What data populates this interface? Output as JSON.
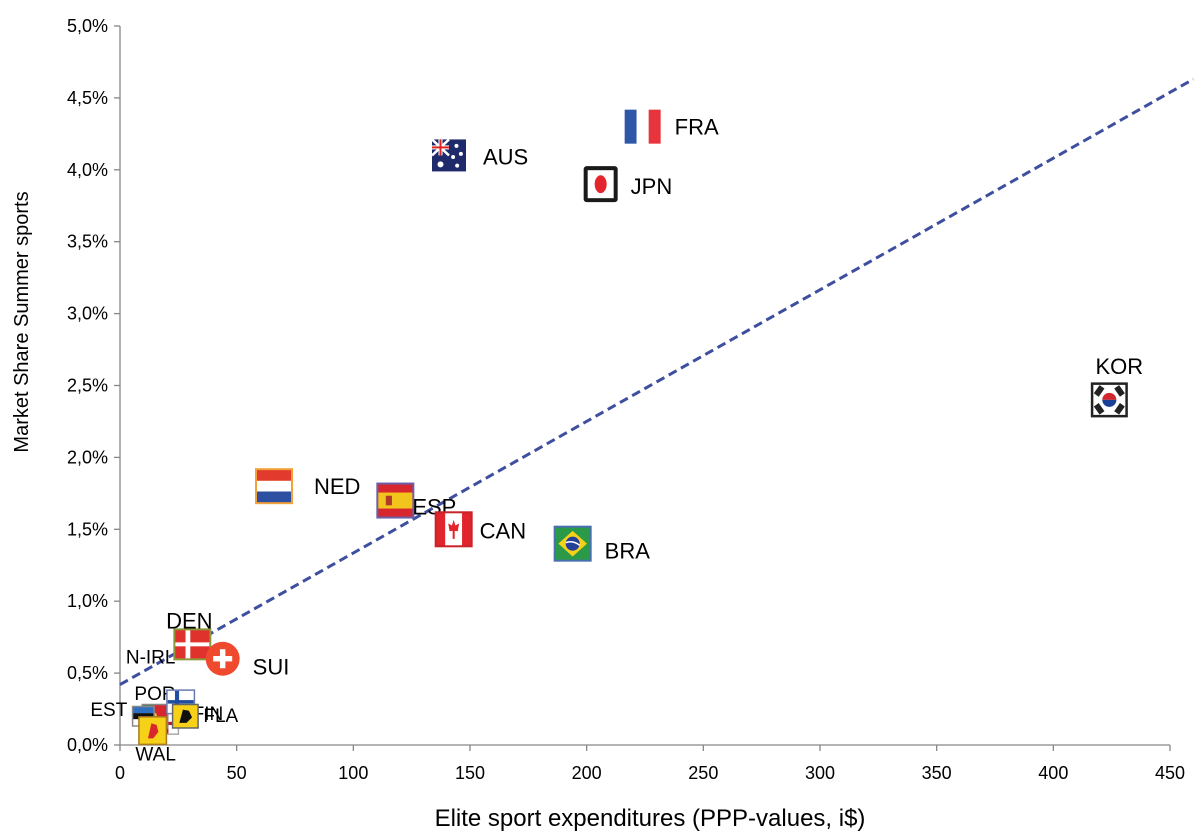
{
  "chart_data": {
    "type": "scatter",
    "title": "",
    "xlabel": "Elite sport expenditures (PPP-values, i$)",
    "ylabel": "Market Share Summer sports",
    "xlim": [
      0,
      450
    ],
    "ylim": [
      0,
      5
    ],
    "x_ticks": [
      "0",
      "50",
      "100",
      "150",
      "200",
      "250",
      "300",
      "350",
      "400",
      "450"
    ],
    "y_ticks": [
      "0,0%",
      "0,5%",
      "1,0%",
      "1,5%",
      "2,0%",
      "2,5%",
      "3,0%",
      "3,5%",
      "4,0%",
      "4,5%",
      "5,0%"
    ],
    "grid": false,
    "legend": "none",
    "trendline": {
      "style": "dashed",
      "color": "#3f4f9f",
      "x": [
        0,
        460
      ],
      "y": [
        0.42,
        4.63
      ]
    },
    "points": [
      {
        "label": "FRA",
        "x": 224,
        "y": 4.3,
        "flag": "france-flag"
      },
      {
        "label": "AUS",
        "x": 141,
        "y": 4.1,
        "flag": "australia-flag"
      },
      {
        "label": "JPN",
        "x": 206,
        "y": 3.9,
        "flag": "japan-flag"
      },
      {
        "label": "KOR",
        "x": 424,
        "y": 2.4,
        "flag": "korea-flag"
      },
      {
        "label": "NED",
        "x": 66,
        "y": 1.8,
        "flag": "netherlands-flag"
      },
      {
        "label": "ESP",
        "x": 118,
        "y": 1.7,
        "flag": "spain-flag"
      },
      {
        "label": "CAN",
        "x": 143,
        "y": 1.5,
        "flag": "canada-flag"
      },
      {
        "label": "BRA",
        "x": 194,
        "y": 1.4,
        "flag": "brazil-flag"
      },
      {
        "label": "DEN",
        "x": 31,
        "y": 0.7,
        "flag": "denmark-flag"
      },
      {
        "label": "SUI",
        "x": 44,
        "y": 0.6,
        "flag": "switzerland-flag"
      },
      {
        "label": "N-IRL",
        "x": 20,
        "y": 0.15,
        "flag": "northern-ireland-flag"
      },
      {
        "label": "POR",
        "x": 15,
        "y": 0.2,
        "flag": "portugal-flag"
      },
      {
        "label": "FIN",
        "x": 26,
        "y": 0.3,
        "flag": "finland-flag"
      },
      {
        "label": "EST",
        "x": 10,
        "y": 0.2,
        "flag": "estonia-flag"
      },
      {
        "label": "FLA",
        "x": 28,
        "y": 0.2,
        "flag": "flanders-flag"
      },
      {
        "label": "WAL",
        "x": 14,
        "y": 0.1,
        "flag": "wallonia-flag"
      }
    ]
  }
}
